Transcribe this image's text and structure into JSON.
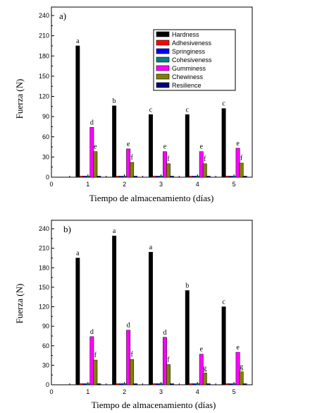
{
  "chart_data": [
    {
      "type": "bar",
      "panel_label": "a)",
      "xlabel": "Tiempo de almacenamiento (días)",
      "ylabel": "Fuerza (N)",
      "ylim": [
        0,
        240
      ],
      "yticks": [
        0,
        30,
        60,
        90,
        120,
        150,
        180,
        210,
        240
      ],
      "xlim": [
        0,
        5.5
      ],
      "xticks": [
        0,
        1,
        2,
        3,
        4,
        5
      ],
      "categories": [
        1,
        2,
        3,
        4,
        5
      ],
      "legend_position": "top-right",
      "series": [
        {
          "name": "Hardness",
          "color": "#000000",
          "values": [
            195,
            106,
            93,
            93,
            102
          ],
          "labels": [
            "a",
            "b",
            "c",
            "c",
            "c"
          ]
        },
        {
          "name": "Adhesiveness",
          "color": "#ff0000",
          "values": [
            0,
            0,
            0,
            0,
            0
          ]
        },
        {
          "name": "Springiness",
          "color": "#0000ff",
          "values": [
            1,
            1,
            1,
            1,
            1
          ]
        },
        {
          "name": "Cohesiveness",
          "color": "#008080",
          "values": [
            1,
            1,
            1,
            1,
            1
          ]
        },
        {
          "name": "Gumminess",
          "color": "#ff00ff",
          "values": [
            74,
            42,
            38,
            38,
            43
          ],
          "labels": [
            "d",
            "e",
            "e",
            "e",
            "e"
          ]
        },
        {
          "name": "Chewiness",
          "color": "#808000",
          "values": [
            38,
            22,
            20,
            20,
            21
          ],
          "labels": [
            "e",
            "f",
            "f",
            "f",
            "f"
          ]
        },
        {
          "name": "Resilience",
          "color": "#000080",
          "values": [
            1,
            1,
            1,
            1,
            1
          ]
        }
      ]
    },
    {
      "type": "bar",
      "panel_label": "b)",
      "xlabel": "Tiempo de almacenamiento (días)",
      "ylabel": "Fuerza (N)",
      "ylim": [
        0,
        240
      ],
      "yticks": [
        0,
        30,
        60,
        90,
        120,
        150,
        180,
        210,
        240
      ],
      "xlim": [
        0,
        5.5
      ],
      "xticks": [
        0,
        1,
        2,
        3,
        4,
        5
      ],
      "categories": [
        1,
        2,
        3,
        4,
        5
      ],
      "series": [
        {
          "name": "Hardness",
          "color": "#000000",
          "values": [
            195,
            229,
            204,
            145,
            120
          ],
          "labels": [
            "a",
            "a",
            "a",
            "b",
            "c"
          ]
        },
        {
          "name": "Adhesiveness",
          "color": "#ff0000",
          "values": [
            0,
            0,
            0,
            0,
            0
          ]
        },
        {
          "name": "Springiness",
          "color": "#0000ff",
          "values": [
            1,
            1,
            1,
            1,
            1
          ]
        },
        {
          "name": "Cohesiveness",
          "color": "#008080",
          "values": [
            1,
            1,
            1,
            1,
            1
          ]
        },
        {
          "name": "Gumminess",
          "color": "#ff00ff",
          "values": [
            74,
            84,
            73,
            47,
            50
          ],
          "labels": [
            "d",
            "d",
            "d",
            "e",
            "e"
          ]
        },
        {
          "name": "Chewiness",
          "color": "#808000",
          "values": [
            38,
            39,
            31,
            18,
            20
          ],
          "labels": [
            "f",
            "f",
            "f",
            "g",
            "g"
          ]
        },
        {
          "name": "Resilience",
          "color": "#000080",
          "values": [
            1,
            1,
            1,
            1,
            1
          ]
        }
      ]
    }
  ]
}
